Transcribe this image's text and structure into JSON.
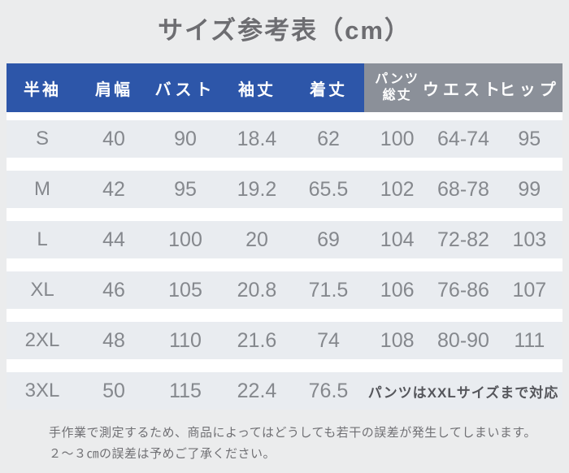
{
  "title": "サイズ参考表（cm）",
  "table": {
    "headers": {
      "short_sleeve": "半袖",
      "shoulder": "肩幅",
      "bust": "バスト",
      "sleeve": "袖丈",
      "length": "着丈",
      "pants_line1": "パンツ",
      "pants_line2": "総丈",
      "waist": "ウエスト",
      "hip": "ヒップ"
    },
    "rows": [
      {
        "size": "S",
        "shoulder": "40",
        "bust": "90",
        "sleeve": "18.4",
        "length": "62",
        "pants": "100",
        "waist": "64-74",
        "hip": "95"
      },
      {
        "size": "M",
        "shoulder": "42",
        "bust": "95",
        "sleeve": "19.2",
        "length": "65.5",
        "pants": "102",
        "waist": "68-78",
        "hip": "99"
      },
      {
        "size": "L",
        "shoulder": "44",
        "bust": "100",
        "sleeve": "20",
        "length": "69",
        "pants": "104",
        "waist": "72-82",
        "hip": "103"
      },
      {
        "size": "XL",
        "shoulder": "46",
        "bust": "105",
        "sleeve": "20.8",
        "length": "71.5",
        "pants": "106",
        "waist": "76-86",
        "hip": "107"
      },
      {
        "size": "2XL",
        "shoulder": "48",
        "bust": "110",
        "sleeve": "21.6",
        "length": "74",
        "pants": "108",
        "waist": "80-90",
        "hip": "111"
      },
      {
        "size": "3XL",
        "shoulder": "50",
        "bust": "115",
        "sleeve": "22.4",
        "length": "76.5",
        "note": "パンツはXXLサイズまで対応"
      }
    ]
  },
  "footer": {
    "line1": "手作業で測定するため、商品によってはどうしても若干の誤差が発生してしまいます。",
    "line2": "２～３㎝の誤差は予めご了承ください。"
  },
  "colors": {
    "header_blue": "#2d56a9",
    "header_gray": "#8b9099",
    "row_bg": "#e9ecf0",
    "value_text": "#85888d"
  }
}
